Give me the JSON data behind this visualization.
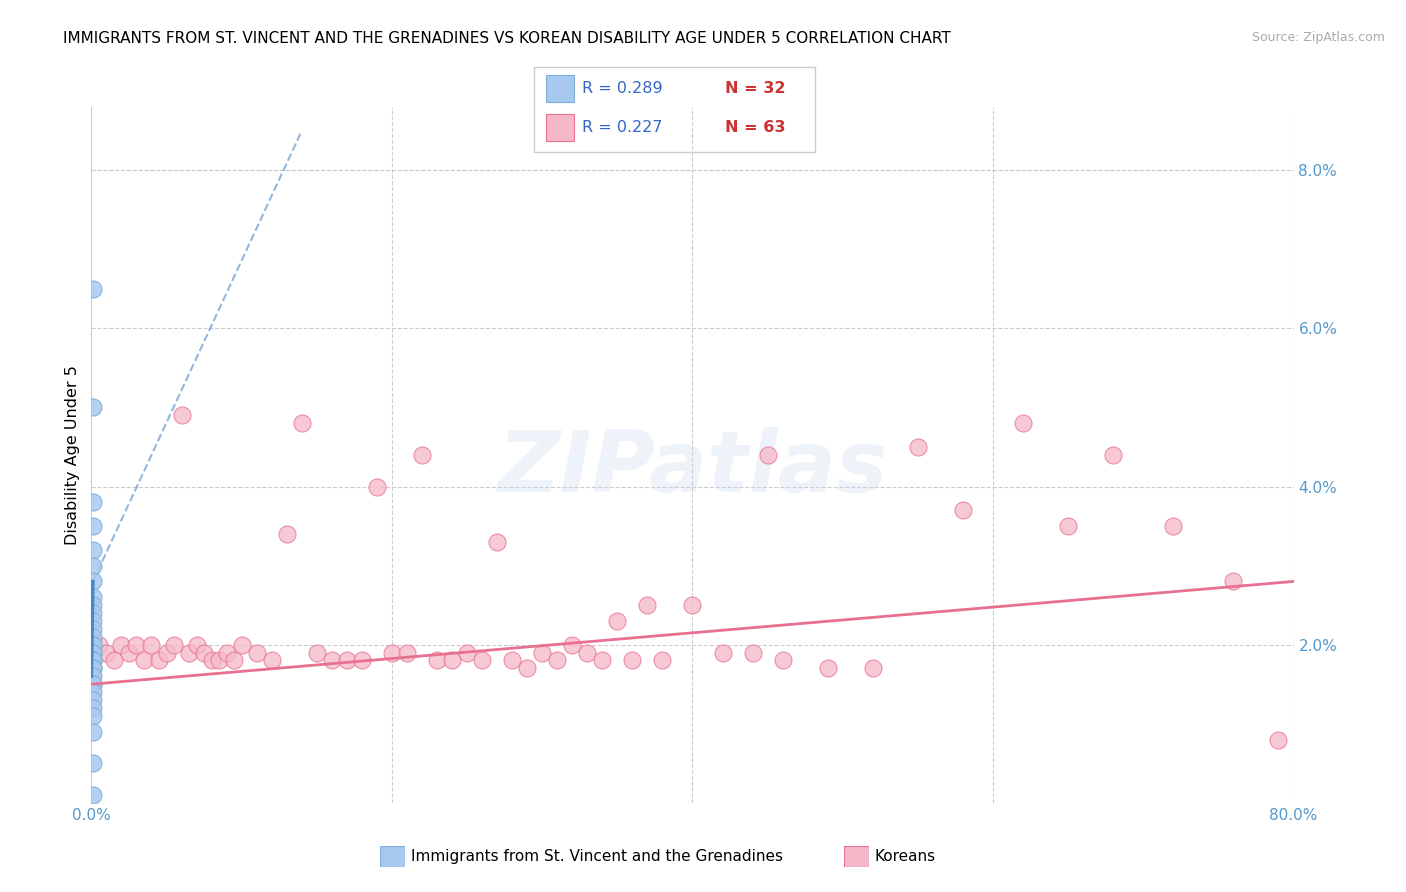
{
  "title": "IMMIGRANTS FROM ST. VINCENT AND THE GRENADINES VS KOREAN DISABILITY AGE UNDER 5 CORRELATION CHART",
  "source": "Source: ZipAtlas.com",
  "ylabel": "Disability Age Under 5",
  "right_yticks": [
    0.0,
    0.02,
    0.04,
    0.06,
    0.08
  ],
  "right_yticklabels": [
    "",
    "2.0%",
    "4.0%",
    "6.0%",
    "8.0%"
  ],
  "xlim": [
    0.0,
    0.8
  ],
  "ylim": [
    0.0,
    0.088
  ],
  "legend_r1": "R = 0.289",
  "legend_n1": "N = 32",
  "legend_r2": "R = 0.227",
  "legend_n2": "N = 63",
  "blue_color": "#a8c8f0",
  "blue_edge": "#7bafd4",
  "blue_line_color": "#4a86c8",
  "pink_color": "#f5b8c8",
  "pink_edge": "#e87090",
  "pink_line_color": "#e87090",
  "watermark": "ZIPatlas",
  "blue_scatter_x": [
    0.001,
    0.001,
    0.001,
    0.001,
    0.001,
    0.001,
    0.001,
    0.001,
    0.001,
    0.001,
    0.001,
    0.001,
    0.001,
    0.001,
    0.001,
    0.001,
    0.001,
    0.001,
    0.001,
    0.001,
    0.001,
    0.001,
    0.001,
    0.001,
    0.001,
    0.001,
    0.001,
    0.001,
    0.001,
    0.001,
    0.001,
    0.001
  ],
  "blue_scatter_y": [
    0.065,
    0.05,
    0.038,
    0.035,
    0.032,
    0.03,
    0.028,
    0.026,
    0.025,
    0.024,
    0.023,
    0.022,
    0.021,
    0.02,
    0.02,
    0.019,
    0.019,
    0.018,
    0.018,
    0.018,
    0.017,
    0.017,
    0.016,
    0.015,
    0.015,
    0.014,
    0.013,
    0.012,
    0.011,
    0.009,
    0.005,
    0.001
  ],
  "pink_scatter_x": [
    0.005,
    0.01,
    0.015,
    0.02,
    0.025,
    0.03,
    0.035,
    0.04,
    0.045,
    0.05,
    0.055,
    0.06,
    0.065,
    0.07,
    0.075,
    0.08,
    0.085,
    0.09,
    0.095,
    0.1,
    0.11,
    0.12,
    0.13,
    0.14,
    0.15,
    0.16,
    0.17,
    0.18,
    0.19,
    0.2,
    0.21,
    0.22,
    0.23,
    0.24,
    0.25,
    0.26,
    0.27,
    0.28,
    0.29,
    0.3,
    0.31,
    0.32,
    0.33,
    0.34,
    0.35,
    0.36,
    0.37,
    0.38,
    0.4,
    0.42,
    0.44,
    0.45,
    0.46,
    0.49,
    0.52,
    0.55,
    0.58,
    0.62,
    0.65,
    0.68,
    0.72,
    0.76,
    0.79
  ],
  "pink_scatter_y": [
    0.02,
    0.019,
    0.018,
    0.02,
    0.019,
    0.02,
    0.018,
    0.02,
    0.018,
    0.019,
    0.02,
    0.049,
    0.019,
    0.02,
    0.019,
    0.018,
    0.018,
    0.019,
    0.018,
    0.02,
    0.019,
    0.018,
    0.034,
    0.048,
    0.019,
    0.018,
    0.018,
    0.018,
    0.04,
    0.019,
    0.019,
    0.044,
    0.018,
    0.018,
    0.019,
    0.018,
    0.033,
    0.018,
    0.017,
    0.019,
    0.018,
    0.02,
    0.019,
    0.018,
    0.023,
    0.018,
    0.025,
    0.018,
    0.025,
    0.019,
    0.019,
    0.044,
    0.018,
    0.017,
    0.017,
    0.045,
    0.037,
    0.048,
    0.035,
    0.044,
    0.035,
    0.028,
    0.008
  ],
  "pink_trend_x0": 0.0,
  "pink_trend_y0": 0.015,
  "pink_trend_x1": 0.8,
  "pink_trend_y1": 0.028,
  "blue_trend_solid_x0": 0.0,
  "blue_trend_solid_y0": 0.016,
  "blue_trend_solid_x1": 0.001,
  "blue_trend_solid_y1": 0.028,
  "blue_trend_dash_x0": 0.001,
  "blue_trend_dash_y0": 0.028,
  "blue_trend_dash_x1": 0.14,
  "blue_trend_dash_y1": 0.085
}
